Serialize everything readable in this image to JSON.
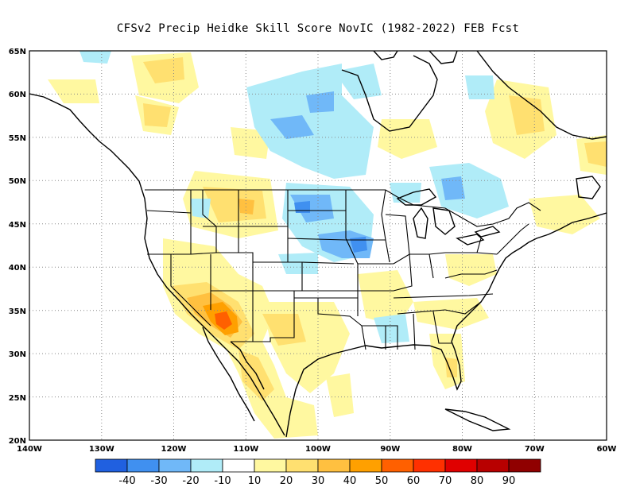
{
  "title": "CFSv2 Precip Heidke Skill Score NovIC (1982-2022) FEB Fcst",
  "map": {
    "lat_labels": [
      "65N",
      "60N",
      "55N",
      "50N",
      "45N",
      "40N",
      "35N",
      "30N",
      "25N",
      "20N"
    ],
    "lon_labels": [
      "140W",
      "130W",
      "120W",
      "110W",
      "100W",
      "90W",
      "80W",
      "70W",
      "60W"
    ],
    "grid": "dotted"
  },
  "colorbar": {
    "colors": [
      "#2060e0",
      "#4090f0",
      "#70b8f8",
      "#b0ecf8",
      "#ffffff",
      "#fff8a0",
      "#ffe070",
      "#ffc040",
      "#ffa000",
      "#ff6000",
      "#ff3000",
      "#e00000",
      "#b80000",
      "#900000"
    ],
    "labels": [
      "-40",
      "-30",
      "-20",
      "-10",
      "10",
      "20",
      "30",
      "40",
      "50",
      "60",
      "70",
      "80",
      "90"
    ]
  }
}
